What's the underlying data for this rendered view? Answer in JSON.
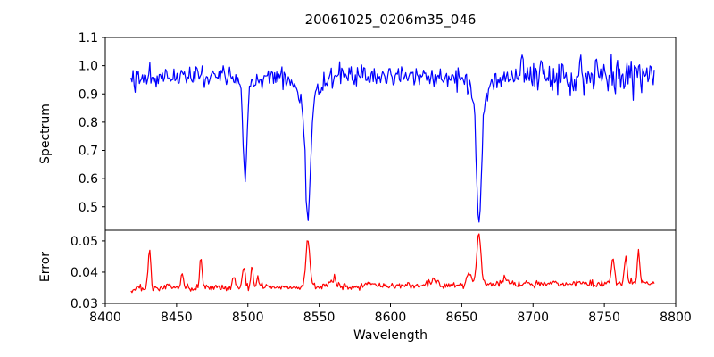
{
  "chart_data": {
    "type": "line",
    "title": "20061025_0206m35_046",
    "xlabel": "Wavelength",
    "xlim": [
      8400,
      8800
    ],
    "xticks": [
      8400,
      8450,
      8500,
      8550,
      8600,
      8650,
      8700,
      8750,
      8800
    ],
    "xtick_labels": [
      "8400",
      "8450",
      "8500",
      "8550",
      "8600",
      "8650",
      "8700",
      "8750",
      "8800"
    ],
    "x_data_range": [
      8418,
      8785
    ],
    "n_points": 500,
    "seed": 42,
    "background_color": "#ffffff",
    "axis_color": "#000000",
    "grid": false,
    "legend": false,
    "layout_hint": "two stacked panels sharing x axis, no gap",
    "panels": [
      {
        "name": "spectrum",
        "ylabel": "Spectrum",
        "line_color": "#0000ff",
        "ylim": [
          0.417,
          1.1
        ],
        "yticks": [
          0.5,
          0.6,
          0.7,
          0.8,
          0.9,
          1.0,
          1.1
        ],
        "ytick_labels": [
          "0.5",
          "0.6",
          "0.7",
          "0.8",
          "0.9",
          "1.0",
          "1.1"
        ],
        "continuum": 0.962,
        "noise_model": {
          "base_factor": 0.5,
          "end_factor": 0.85,
          "end_start": 8660,
          "end_ramp": 40,
          "core_damping": 0.7
        },
        "absorption_lines": [
          {
            "center": 8498.0,
            "min_value": 0.61,
            "core_depth": 0.3,
            "core_sigma": 1.3,
            "wing_depth": 0.05,
            "wing_sigma": 4.0
          },
          {
            "center": 8542.1,
            "min_value": 0.465,
            "core_depth": 0.4,
            "core_sigma": 1.7,
            "wing_depth": 0.1,
            "wing_sigma": 6.0
          },
          {
            "center": 8662.1,
            "min_value": 0.44,
            "core_depth": 0.42,
            "core_sigma": 1.6,
            "wing_depth": 0.1,
            "wing_sigma": 6.0
          }
        ]
      },
      {
        "name": "error",
        "ylabel": "Error",
        "line_color": "#ff0000",
        "ylim": [
          0.03,
          0.0534
        ],
        "yticks": [
          0.03,
          0.04,
          0.05
        ],
        "ytick_labels": [
          "0.03",
          "0.04",
          "0.05"
        ],
        "baseline_start": 0.0346,
        "baseline_end": 0.0366,
        "noise_sigma": 0.0006,
        "spikes": [
          {
            "center": 8431.0,
            "amp": 0.0125,
            "sigma": 0.9
          },
          {
            "center": 8445.0,
            "amp": 0.002,
            "sigma": 1.0
          },
          {
            "center": 8454.0,
            "amp": 0.005,
            "sigma": 0.9
          },
          {
            "center": 8467.0,
            "amp": 0.0095,
            "sigma": 0.9
          },
          {
            "center": 8490.0,
            "amp": 0.003,
            "sigma": 1.0
          },
          {
            "center": 8497.0,
            "amp": 0.0065,
            "sigma": 1.0
          },
          {
            "center": 8503.0,
            "amp": 0.0065,
            "sigma": 0.9
          },
          {
            "center": 8507.0,
            "amp": 0.0045,
            "sigma": 0.8
          },
          {
            "center": 8542.1,
            "amp": 0.0155,
            "sigma": 1.4
          },
          {
            "center": 8560.0,
            "amp": 0.0025,
            "sigma": 1.5
          },
          {
            "center": 8585.0,
            "amp": 0.0012,
            "sigma": 2.0
          },
          {
            "center": 8630.0,
            "amp": 0.0018,
            "sigma": 2.0
          },
          {
            "center": 8655.0,
            "amp": 0.004,
            "sigma": 1.5
          },
          {
            "center": 8662.1,
            "amp": 0.0165,
            "sigma": 1.4
          },
          {
            "center": 8680.0,
            "amp": 0.002,
            "sigma": 1.5
          },
          {
            "center": 8756.0,
            "amp": 0.0075,
            "sigma": 1.1
          },
          {
            "center": 8765.0,
            "amp": 0.0095,
            "sigma": 0.9
          },
          {
            "center": 8774.0,
            "amp": 0.0095,
            "sigma": 0.9
          }
        ]
      }
    ]
  }
}
